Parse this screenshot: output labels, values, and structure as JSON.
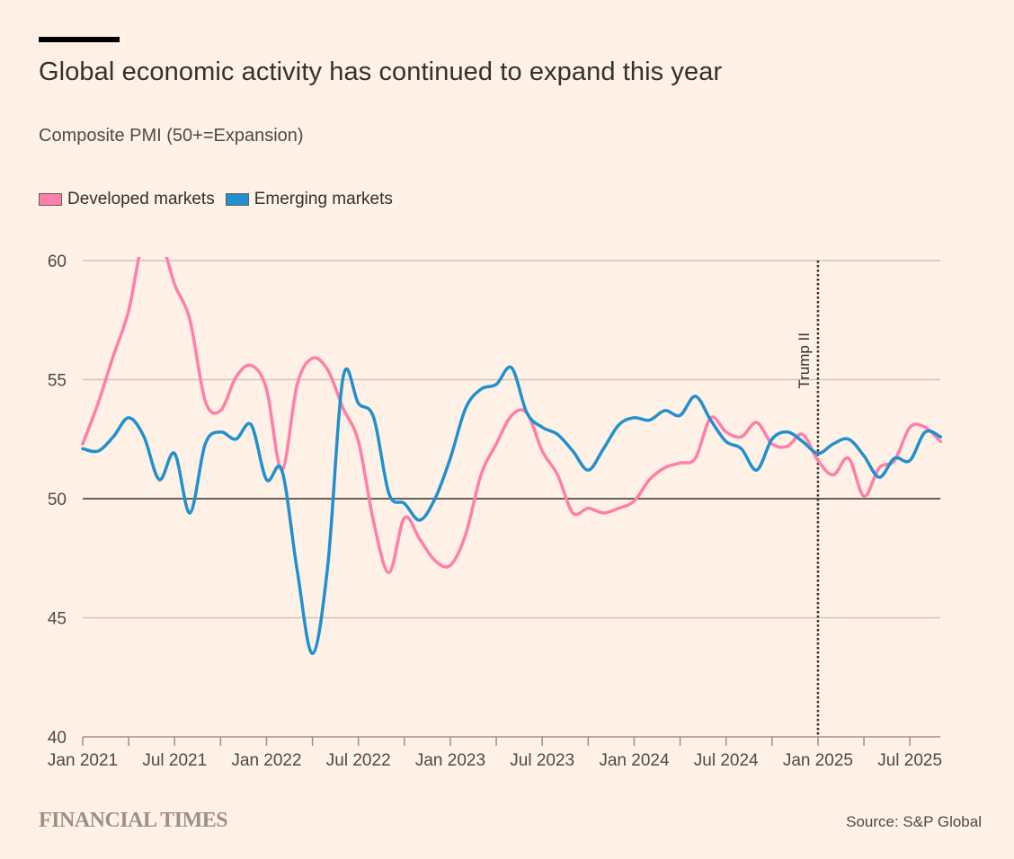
{
  "header": {
    "title": "Global economic activity has continued to expand this year",
    "subtitle": "Composite PMI (50+=Expansion)"
  },
  "legend": [
    {
      "label": "Developed markets",
      "color": "#ff7faa"
    },
    {
      "label": "Emerging markets",
      "color": "#2190d0"
    }
  ],
  "footer": {
    "brand": "FINANCIAL TIMES",
    "source": "Source: S&P Global"
  },
  "chart_data": {
    "type": "line",
    "title": "Global economic activity has continued to expand this year",
    "subtitle": "Composite PMI (50+=Expansion)",
    "xlabel": "",
    "ylabel": "",
    "ylim": [
      40,
      60
    ],
    "yticks": [
      40,
      45,
      50,
      55,
      60
    ],
    "ytick_labels": [
      "40",
      "45",
      "50",
      "55",
      "60"
    ],
    "reference_line": 50,
    "grid": true,
    "legend_position": "top-left",
    "x_start": "Jan 2021",
    "x_frequency": "monthly",
    "x_count": 57,
    "xtick_labels": [
      "Jan 2021",
      "Jul 2021",
      "Jan 2022",
      "Jul 2022",
      "Jan 2023",
      "Jul 2023",
      "Jan 2024",
      "Jul 2024",
      "Jan 2025",
      "Jul 2025"
    ],
    "xtick_label_index": [
      0,
      6,
      12,
      18,
      24,
      30,
      36,
      42,
      48,
      54
    ],
    "annotations": [
      {
        "label": "Trump II",
        "x_index": 48,
        "style": "dotted-vertical"
      }
    ],
    "series": [
      {
        "name": "Developed markets",
        "color": "#ff7faa",
        "values": [
          52.3,
          54.0,
          56.0,
          57.9,
          61.0,
          61.0,
          59.0,
          57.5,
          54.1,
          53.7,
          55.1,
          55.6,
          54.6,
          51.2,
          54.8,
          55.9,
          55.4,
          53.8,
          52.4,
          49.0,
          46.9,
          49.2,
          48.3,
          47.4,
          47.2,
          48.5,
          51.0,
          52.3,
          53.5,
          53.6,
          52.0,
          51.0,
          49.4,
          49.6,
          49.4,
          49.6,
          49.9,
          50.8,
          51.3,
          51.5,
          51.7,
          53.4,
          52.8,
          52.6,
          53.2,
          52.3,
          52.2,
          52.7,
          51.6,
          51.0,
          51.7,
          50.1,
          51.3,
          51.6,
          53.0,
          53.0,
          52.4
        ]
      },
      {
        "name": "Emerging markets",
        "color": "#2190d0",
        "values": [
          52.1,
          52.0,
          52.6,
          53.4,
          52.6,
          50.8,
          51.9,
          49.4,
          52.3,
          52.8,
          52.5,
          53.1,
          50.8,
          51.2,
          47.0,
          43.5,
          47.2,
          55.1,
          54.0,
          53.4,
          50.2,
          49.8,
          49.1,
          50.0,
          51.7,
          53.8,
          54.6,
          54.8,
          55.5,
          53.6,
          53.0,
          52.7,
          52.0,
          51.2,
          52.1,
          53.1,
          53.4,
          53.3,
          53.7,
          53.5,
          54.3,
          53.3,
          52.4,
          52.1,
          51.2,
          52.5,
          52.8,
          52.4,
          51.9,
          52.3,
          52.5,
          51.8,
          50.9,
          51.7,
          51.6,
          52.8,
          52.6
        ]
      }
    ]
  }
}
